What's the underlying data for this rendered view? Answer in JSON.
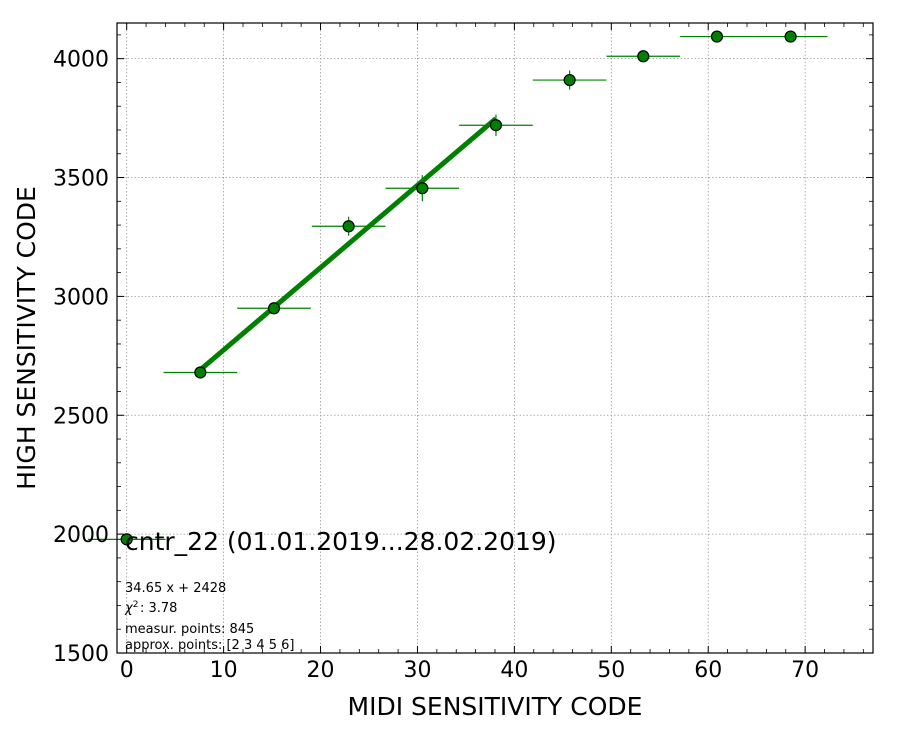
{
  "chart_data": {
    "type": "scatter",
    "xlabel": "MIDI SENSITIVITY CODE",
    "ylabel": "HIGH SENSITIVITY CODE",
    "xlim": [
      -1,
      77
    ],
    "ylim": [
      1500,
      4150
    ],
    "xticks": [
      0,
      10,
      20,
      30,
      40,
      50,
      60,
      70
    ],
    "yticks": [
      1500,
      2000,
      2500,
      3000,
      3500,
      4000
    ],
    "grid": true,
    "marker_color": "#008000",
    "fit_color": "#008000",
    "points": [
      {
        "x": 0.0,
        "y": 1978,
        "xerr": 4.0,
        "yerr": 10
      },
      {
        "x": 7.6,
        "y": 2680,
        "xerr": 3.8,
        "yerr": 12
      },
      {
        "x": 15.2,
        "y": 2950,
        "xerr": 3.8,
        "yerr": 25
      },
      {
        "x": 22.9,
        "y": 3295,
        "xerr": 3.8,
        "yerr": 40
      },
      {
        "x": 30.5,
        "y": 3455,
        "xerr": 3.8,
        "yerr": 55
      },
      {
        "x": 38.1,
        "y": 3720,
        "xerr": 3.8,
        "yerr": 45
      },
      {
        "x": 45.7,
        "y": 3910,
        "xerr": 3.8,
        "yerr": 40
      },
      {
        "x": 53.3,
        "y": 4010,
        "xerr": 3.8,
        "yerr": 15
      },
      {
        "x": 60.9,
        "y": 4093,
        "xerr": 3.8,
        "yerr": 8
      },
      {
        "x": 68.5,
        "y": 4093,
        "xerr": 3.8,
        "yerr": 8
      }
    ],
    "fit": {
      "slope": 34.65,
      "intercept": 2428,
      "x_range": [
        7.6,
        38.1
      ]
    },
    "legend": {
      "label": "cntr_22 (01.01.2019...28.02.2019)",
      "placement": "lower-left"
    },
    "annotations": [
      "34.65 x + 2428",
      ": 3.78",
      "measur. points: 845",
      "approx. points: [2 3 4 5 6]"
    ]
  }
}
